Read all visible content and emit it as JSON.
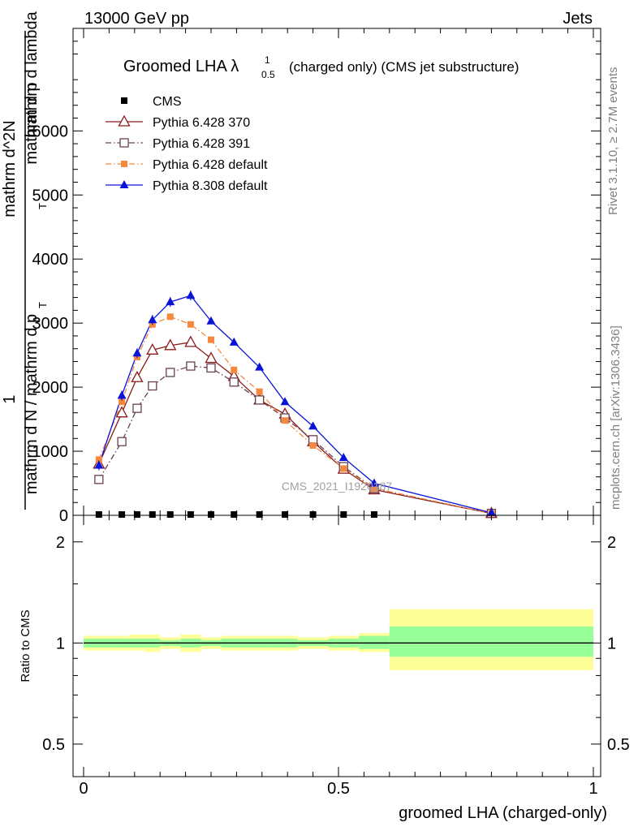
{
  "header": {
    "left": "13000 GeV pp",
    "right": "Jets"
  },
  "side": {
    "rivet": "Rivet 3.1.10, ≥ 2.7M events",
    "mcplots": "mcplots.cern.ch [arXiv:1306.3436]"
  },
  "title": {
    "main": "Groomed LHA λ",
    "sup": "1",
    "sub": "0.5",
    "rest": "(charged only) (CMS jet substructure)"
  },
  "watermark": "CMS_2021_I1920187",
  "main_ylabel": {
    "num_top": "1",
    "num": "mathrm d N / mathrm d p",
    "num_sub": "T",
    "den_top": "mathrm d^2N",
    "den": "mathrm d p",
    "den_sub": "T",
    "den_tail": " mathrm d lambda"
  },
  "ratio_ylabel": "Ratio to CMS",
  "xlabel": "groomed LHA (charged-only)",
  "colors": {
    "cms": "#000000",
    "p370": "#8b1a1a",
    "p391": "#6b4050",
    "p6def": "#f5883c",
    "p8def": "#0a14d8",
    "band_outer": "#ffff99",
    "band_inner": "#99ff99"
  },
  "legend": [
    {
      "label": "CMS"
    },
    {
      "label": "Pythia 6.428 370"
    },
    {
      "label": "Pythia 6.428 391"
    },
    {
      "label": "Pythia 6.428 default"
    },
    {
      "label": "Pythia 8.308 default"
    }
  ],
  "chart_data": [
    {
      "type": "line",
      "xlim": [
        0,
        1
      ],
      "ylim": [
        0,
        7600
      ],
      "yticks": [
        0,
        1000,
        2000,
        3000,
        4000,
        5000,
        6000
      ],
      "ytick_labels": [
        "0",
        "1000",
        "2000",
        "3000",
        "4000",
        "5000",
        "6000"
      ],
      "x": [
        0.03,
        0.075,
        0.105,
        0.135,
        0.17,
        0.21,
        0.25,
        0.295,
        0.345,
        0.395,
        0.45,
        0.51,
        0.57,
        0.8
      ],
      "series": [
        {
          "name": "CMS",
          "marker": "square",
          "values": [
            0,
            0,
            0,
            0,
            0,
            0,
            0,
            0,
            0,
            0,
            0,
            0,
            0,
            null
          ]
        },
        {
          "name": "Pythia 6.428 370",
          "marker": "triangle-open",
          "values": [
            800,
            1600,
            2150,
            2580,
            2650,
            2700,
            2450,
            2170,
            1800,
            1580,
            1150,
            720,
            400,
            30
          ]
        },
        {
          "name": "Pythia 6.428 391",
          "marker": "square-open",
          "values": [
            560,
            1150,
            1670,
            2020,
            2230,
            2330,
            2300,
            2080,
            1800,
            1520,
            1180,
            760,
            420,
            30
          ]
        },
        {
          "name": "Pythia 6.428 default",
          "marker": "square-filled",
          "values": [
            870,
            1770,
            2470,
            2980,
            3100,
            2980,
            2740,
            2270,
            1930,
            1480,
            1090,
            730,
            420,
            30
          ]
        },
        {
          "name": "Pythia 8.308 default",
          "marker": "triangle-filled",
          "values": [
            780,
            1870,
            2530,
            3050,
            3330,
            3430,
            3030,
            2700,
            2310,
            1770,
            1390,
            900,
            500,
            40
          ]
        }
      ]
    },
    {
      "type": "area",
      "xlim": [
        0,
        1
      ],
      "ylim": [
        0.4,
        2.4
      ],
      "yscale": "log",
      "yticks": [
        0.5,
        1,
        2
      ],
      "ytick_labels": [
        "0.5",
        "1",
        "2"
      ],
      "xticks": [
        0,
        0.5,
        1
      ],
      "xtick_labels": [
        "0",
        "0.5",
        "1"
      ],
      "bins": [
        0,
        0.06,
        0.09,
        0.12,
        0.15,
        0.19,
        0.23,
        0.27,
        0.32,
        0.37,
        0.42,
        0.48,
        0.54,
        0.6,
        1.0
      ],
      "band_outer": [
        [
          0.95,
          1.05
        ],
        [
          0.95,
          1.05
        ],
        [
          0.95,
          1.06
        ],
        [
          0.94,
          1.06
        ],
        [
          0.96,
          1.04
        ],
        [
          0.94,
          1.06
        ],
        [
          0.96,
          1.04
        ],
        [
          0.95,
          1.05
        ],
        [
          0.95,
          1.05
        ],
        [
          0.95,
          1.05
        ],
        [
          0.96,
          1.04
        ],
        [
          0.95,
          1.05
        ],
        [
          0.94,
          1.07
        ],
        [
          0.83,
          1.26
        ]
      ],
      "band_inner": [
        [
          0.97,
          1.03
        ],
        [
          0.97,
          1.03
        ],
        [
          0.97,
          1.03
        ],
        [
          0.97,
          1.03
        ],
        [
          0.98,
          1.02
        ],
        [
          0.97,
          1.03
        ],
        [
          0.98,
          1.02
        ],
        [
          0.97,
          1.03
        ],
        [
          0.97,
          1.03
        ],
        [
          0.97,
          1.03
        ],
        [
          0.98,
          1.02
        ],
        [
          0.97,
          1.03
        ],
        [
          0.96,
          1.05
        ],
        [
          0.91,
          1.12
        ]
      ],
      "reference": 1
    }
  ]
}
